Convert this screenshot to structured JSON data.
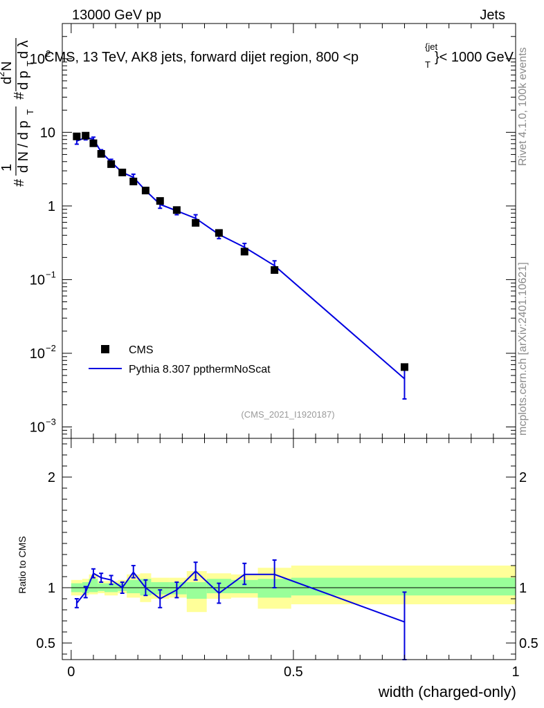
{
  "header": {
    "left": "13000 GeV pp",
    "right": "Jets"
  },
  "side_labels": {
    "rivet": "Rivet 4.1.0,  100k events",
    "mcplots": "mcplots.cern.ch [arXiv:2401.10621]"
  },
  "chart_data": {
    "type": "line",
    "title_parts": {
      "main": "CMS, 13 TeV, AK8 jets, forward dijet region, 800 <p",
      "sup": "{jet",
      "sub": "T",
      "tail": "}< 1000 GeV"
    },
    "ylabel_main": "1/dN/dp_T  d²N/dp_T dλ",
    "xlabel": "width (charged-only)",
    "analysis_tag": "(CMS_2021_I1920187)",
    "yscale": "log",
    "ylim": [
      0.0007,
      300
    ],
    "xlim": [
      -0.02,
      1.0
    ],
    "y_tick_labels": [
      {
        "value": 0.001,
        "base": "10",
        "exp": "−3"
      },
      {
        "value": 0.01,
        "base": "10",
        "exp": "−2"
      },
      {
        "value": 0.1,
        "base": "10",
        "exp": "−1"
      },
      {
        "value": 1,
        "label": "1"
      },
      {
        "value": 10,
        "label": "10"
      },
      {
        "value": 100,
        "base": "10",
        "exp": "2"
      }
    ],
    "legend": [
      {
        "name": "CMS",
        "marker": "square",
        "color": "#000000"
      },
      {
        "name": "Pythia 8.307 ppthermNoScat",
        "marker": "line",
        "color": "#0000e0"
      }
    ],
    "series": [
      {
        "name": "CMS",
        "color": "#000000",
        "x": [
          0.0125,
          0.0325,
          0.05,
          0.0675,
          0.09,
          0.115,
          0.14,
          0.1675,
          0.2,
          0.2375,
          0.28,
          0.3325,
          0.39,
          0.4575,
          0.75
        ],
        "values": [
          8.8,
          9.0,
          7.1,
          5.1,
          3.7,
          2.85,
          2.15,
          1.62,
          1.17,
          0.88,
          0.59,
          0.43,
          0.24,
          0.135,
          0.0065
        ]
      },
      {
        "name": "Pythia 8.307 ppthermNoScat",
        "color": "#0000e0",
        "x": [
          0.0125,
          0.0325,
          0.05,
          0.0675,
          0.09,
          0.115,
          0.14,
          0.1675,
          0.2,
          0.2375,
          0.28,
          0.3325,
          0.39,
          0.4575,
          0.75
        ],
        "values": [
          7.6,
          8.5,
          8.1,
          5.4,
          3.95,
          2.85,
          2.45,
          1.62,
          1.05,
          0.86,
          0.68,
          0.41,
          0.275,
          0.155,
          0.0045
        ],
        "err_low": [
          6.9,
          7.9,
          7.6,
          5.0,
          3.6,
          2.6,
          2.2,
          1.5,
          0.93,
          0.76,
          0.6,
          0.36,
          0.24,
          0.128,
          0.0024
        ],
        "err_high": [
          8.3,
          9.1,
          8.6,
          5.8,
          4.3,
          3.1,
          2.7,
          1.76,
          1.18,
          0.96,
          0.76,
          0.46,
          0.31,
          0.18,
          0.0065
        ]
      }
    ],
    "ratio": {
      "ylabel": "Ratio to CMS",
      "ylim": [
        0.35,
        2.35
      ],
      "y_ticks": [
        0.5,
        1,
        2
      ],
      "x_ticks": [
        0,
        0.5,
        1
      ],
      "bins": [
        {
          "lo": 0.0,
          "hi": 0.025,
          "g": [
            0.96,
            1.04
          ],
          "y": [
            0.93,
            1.07
          ]
        },
        {
          "lo": 0.025,
          "hi": 0.04,
          "g": [
            0.95,
            1.05
          ],
          "y": [
            0.93,
            1.08
          ]
        },
        {
          "lo": 0.04,
          "hi": 0.06,
          "g": [
            0.96,
            1.08
          ],
          "y": [
            0.94,
            1.12
          ]
        },
        {
          "lo": 0.06,
          "hi": 0.075,
          "g": [
            0.97,
            1.04
          ],
          "y": [
            0.95,
            1.06
          ]
        },
        {
          "lo": 0.075,
          "hi": 0.105,
          "g": [
            0.96,
            1.04
          ],
          "y": [
            0.93,
            1.06
          ]
        },
        {
          "lo": 0.105,
          "hi": 0.125,
          "g": [
            0.97,
            1.04
          ],
          "y": [
            0.95,
            1.07
          ]
        },
        {
          "lo": 0.125,
          "hi": 0.155,
          "g": [
            0.95,
            1.07
          ],
          "y": [
            0.91,
            1.12
          ]
        },
        {
          "lo": 0.155,
          "hi": 0.18,
          "g": [
            0.93,
            1.08
          ],
          "y": [
            0.87,
            1.13
          ]
        },
        {
          "lo": 0.18,
          "hi": 0.22,
          "g": [
            0.94,
            1.05
          ],
          "y": [
            0.9,
            1.09
          ]
        },
        {
          "lo": 0.22,
          "hi": 0.26,
          "g": [
            0.94,
            1.05
          ],
          "y": [
            0.91,
            1.09
          ]
        },
        {
          "lo": 0.26,
          "hi": 0.305,
          "g": [
            0.9,
            1.05
          ],
          "y": [
            0.78,
            1.15
          ]
        },
        {
          "lo": 0.305,
          "hi": 0.36,
          "g": [
            0.95,
            1.08
          ],
          "y": [
            0.9,
            1.13
          ]
        },
        {
          "lo": 0.36,
          "hi": 0.42,
          "g": [
            0.95,
            1.07
          ],
          "y": [
            0.91,
            1.12
          ]
        },
        {
          "lo": 0.42,
          "hi": 0.495,
          "g": [
            0.91,
            1.08
          ],
          "y": [
            0.81,
            1.18
          ]
        },
        {
          "lo": 0.495,
          "hi": 1.0,
          "g": [
            0.93,
            1.09
          ],
          "y": [
            0.85,
            1.2
          ]
        }
      ],
      "x": [
        0.0125,
        0.0325,
        0.05,
        0.0675,
        0.09,
        0.115,
        0.14,
        0.1675,
        0.2,
        0.2375,
        0.28,
        0.3325,
        0.39,
        0.4575,
        0.75
      ],
      "values": [
        0.86,
        0.96,
        1.13,
        1.09,
        1.07,
        1.0,
        1.14,
        1.0,
        0.9,
        0.98,
        1.15,
        0.95,
        1.12,
        1.12,
        0.69
      ],
      "err_low": [
        0.82,
        0.91,
        1.09,
        1.05,
        1.03,
        0.95,
        1.09,
        0.93,
        0.82,
        0.91,
        1.07,
        0.86,
        1.03,
        1.0,
        0.35
      ],
      "err_high": [
        0.9,
        1.01,
        1.17,
        1.13,
        1.11,
        1.05,
        1.2,
        1.07,
        0.98,
        1.05,
        1.23,
        1.04,
        1.22,
        1.25,
        0.96
      ]
    }
  }
}
